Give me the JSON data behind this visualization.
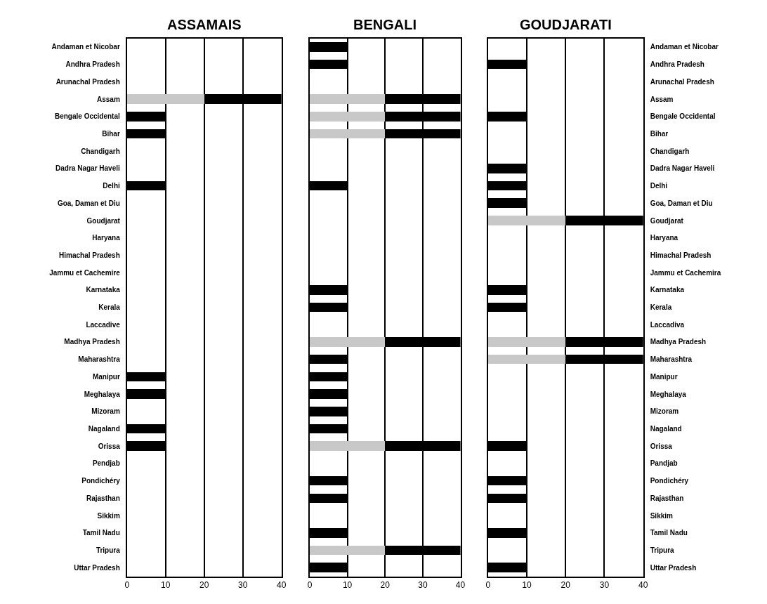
{
  "chart_data": [
    {
      "type": "bar",
      "orientation": "horizontal",
      "stacked": true,
      "title": "ASSAMAIS",
      "grid": "x",
      "xlim": [
        0,
        40
      ],
      "xticks": [
        0,
        10,
        20,
        30,
        40
      ],
      "categories": [
        "Andaman et Nicobar",
        "Andhra Pradesh",
        "Arunachal Pradesh",
        "Assam",
        "Bengale Occidental",
        "Bihar",
        "Chandigarh",
        "Dadra Nagar Haveli",
        "Delhi",
        "Goa, Daman et Diu",
        "Goudjarat",
        "Haryana",
        "Himachal Pradesh",
        "Jammu et Cachemire",
        "Karnataka",
        "Kerala",
        "Laccadive",
        "Madhya Pradesh",
        "Maharashtra",
        "Manipur",
        "Meghalaya",
        "Mizoram",
        "Nagaland",
        "Orissa",
        "Pendjab",
        "Pondichéry",
        "Rajasthan",
        "Sikkim",
        "Tamil Nadu",
        "Tripura",
        "Uttar Pradesh"
      ],
      "series": [
        {
          "color": "#c8c8c8",
          "values": [
            null,
            null,
            null,
            20,
            null,
            null,
            null,
            null,
            null,
            null,
            null,
            null,
            null,
            null,
            null,
            null,
            null,
            null,
            null,
            null,
            null,
            null,
            null,
            null,
            null,
            null,
            null,
            null,
            null,
            null,
            null
          ]
        },
        {
          "color": "#000000",
          "values": [
            null,
            null,
            null,
            20,
            10,
            10,
            null,
            null,
            10,
            null,
            null,
            null,
            null,
            null,
            null,
            null,
            null,
            null,
            null,
            10,
            10,
            null,
            10,
            10,
            null,
            null,
            null,
            null,
            null,
            null,
            null
          ]
        }
      ]
    },
    {
      "type": "bar",
      "orientation": "horizontal",
      "stacked": true,
      "title": "BENGALI",
      "grid": "x",
      "xlim": [
        0,
        40
      ],
      "xticks": [
        0,
        10,
        20,
        30,
        40
      ],
      "tick_labels": "x",
      "categories": [
        null,
        null,
        null,
        null,
        null,
        null,
        null,
        null,
        null,
        null,
        null,
        null,
        null,
        null,
        null,
        null,
        null,
        null,
        null,
        null,
        null,
        null,
        null,
        null,
        null,
        null,
        null,
        null,
        null,
        null,
        null
      ],
      "series": [
        {
          "color": "#c8c8c8",
          "values": [
            null,
            null,
            null,
            20,
            20,
            20,
            null,
            null,
            null,
            null,
            null,
            null,
            null,
            null,
            null,
            null,
            null,
            20,
            null,
            null,
            null,
            null,
            null,
            20,
            null,
            null,
            null,
            null,
            null,
            20,
            null
          ]
        },
        {
          "color": "#000000",
          "values": [
            10,
            10,
            null,
            20,
            20,
            20,
            null,
            null,
            10,
            null,
            null,
            null,
            null,
            null,
            10,
            10,
            null,
            20,
            10,
            10,
            10,
            10,
            10,
            20,
            null,
            10,
            10,
            null,
            10,
            20,
            10
          ]
        }
      ]
    },
    {
      "type": "bar",
      "orientation": "horizontal",
      "stacked": true,
      "title": "GOUDJARATI",
      "grid": "x",
      "xlim": [
        0,
        40
      ],
      "xticks": [
        0,
        10,
        20,
        30,
        40
      ],
      "categories": [
        "Andaman et Nicobar",
        "Andhra Pradesh",
        "Arunachal Pradesh",
        "Assam",
        "Bengale Occidental",
        "Bihar",
        "Chandigarh",
        "Dadra Nagar Haveli",
        "Delhi",
        "Goa, Daman et Diu",
        "Goudjarat",
        "Haryana",
        "Himachal Pradesh",
        "Jammu et Cachemira",
        "Karnataka",
        "Kerala",
        "Laccadiva",
        "Madhya Pradesh",
        "Maharashtra",
        "Manipur",
        "Meghalaya",
        "Mizoram",
        "Nagaland",
        "Orissa",
        "Pandjab",
        "Pondichéry",
        "Rajasthan",
        "Sikkim",
        "Tamil Nadu",
        "Tripura",
        "Uttar Pradesh"
      ],
      "series": [
        {
          "color": "#c8c8c8",
          "values": [
            null,
            null,
            null,
            null,
            null,
            null,
            null,
            null,
            null,
            null,
            20,
            null,
            null,
            null,
            null,
            null,
            null,
            20,
            20,
            null,
            null,
            null,
            null,
            null,
            null,
            null,
            null,
            null,
            null,
            null,
            null
          ]
        },
        {
          "color": "#000000",
          "values": [
            null,
            10,
            null,
            null,
            10,
            null,
            null,
            10,
            10,
            10,
            20,
            null,
            null,
            null,
            10,
            10,
            null,
            20,
            20,
            null,
            null,
            null,
            null,
            10,
            null,
            10,
            10,
            null,
            10,
            null,
            10
          ]
        }
      ]
    }
  ]
}
